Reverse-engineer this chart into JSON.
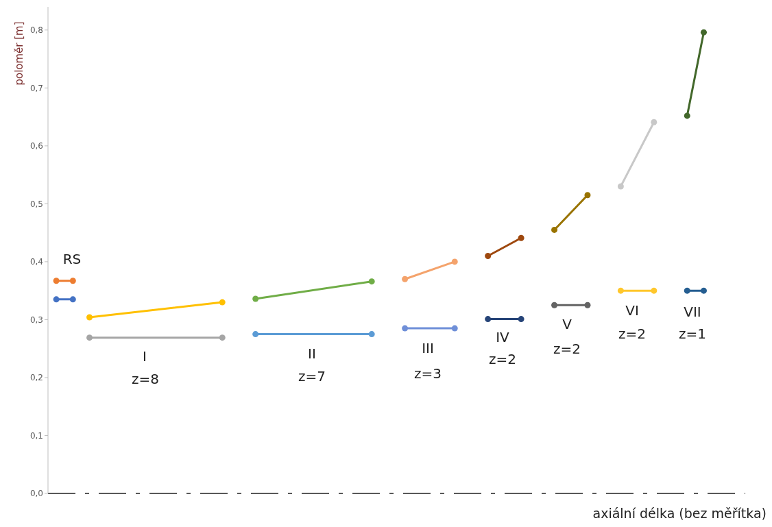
{
  "chart_data": {
    "type": "line",
    "xlabel": "axiální délka (bez měřítka)",
    "ylabel": "poloměr [m]",
    "categories": [
      null,
      null,
      null,
      null,
      null,
      null,
      null,
      null,
      null,
      null,
      null,
      null,
      null,
      null,
      null,
      null,
      null,
      null,
      null,
      null,
      null,
      null,
      null,
      null,
      null,
      null,
      null,
      null,
      null,
      null,
      null,
      null,
      null,
      null,
      null,
      null,
      null,
      null,
      null,
      null,
      null,
      null
    ],
    "series": [
      {
        "color": "#ed7d31",
        "values": [
          0.367,
          0.367,
          null,
          null,
          null,
          null,
          null,
          null,
          null,
          null,
          null,
          null,
          null,
          null,
          null,
          null,
          null,
          null,
          null,
          null,
          null,
          null,
          null,
          null,
          null,
          null,
          null,
          null,
          null,
          null,
          null,
          null,
          null,
          null,
          null,
          null,
          null,
          null,
          null,
          null,
          null,
          null
        ]
      },
      {
        "color": "#4472c4",
        "values": [
          0.335,
          0.335,
          null,
          null,
          null,
          null,
          null,
          null,
          null,
          null,
          null,
          null,
          null,
          null,
          null,
          null,
          null,
          null,
          null,
          null,
          null,
          null,
          null,
          null,
          null,
          null,
          null,
          null,
          null,
          null,
          null,
          null,
          null,
          null,
          null,
          null,
          null,
          null,
          null,
          null,
          null,
          null
        ]
      },
      {
        "color": "#ffc000",
        "values": [
          null,
          null,
          0.304,
          null,
          null,
          null,
          null,
          null,
          null,
          null,
          0.33,
          null,
          null,
          null,
          null,
          null,
          null,
          null,
          null,
          null,
          null,
          null,
          null,
          null,
          null,
          null,
          null,
          null,
          null,
          null,
          null,
          null,
          null,
          null,
          null,
          null,
          null,
          null,
          null,
          null,
          null,
          null
        ]
      },
      {
        "color": "#a5a5a5",
        "values": [
          null,
          null,
          0.269,
          null,
          null,
          null,
          null,
          null,
          null,
          null,
          0.269,
          null,
          null,
          null,
          null,
          null,
          null,
          null,
          null,
          null,
          null,
          null,
          null,
          null,
          null,
          null,
          null,
          null,
          null,
          null,
          null,
          null,
          null,
          null,
          null,
          null,
          null,
          null,
          null,
          null,
          null,
          null
        ]
      },
      {
        "color": "#70ad47",
        "values": [
          null,
          null,
          null,
          null,
          null,
          null,
          null,
          null,
          null,
          null,
          null,
          null,
          0.336,
          null,
          null,
          null,
          null,
          null,
          null,
          0.366,
          null,
          null,
          null,
          null,
          null,
          null,
          null,
          null,
          null,
          null,
          null,
          null,
          null,
          null,
          null,
          null,
          null,
          null,
          null,
          null,
          null,
          null
        ]
      },
      {
        "color": "#5b9bd5",
        "values": [
          null,
          null,
          null,
          null,
          null,
          null,
          null,
          null,
          null,
          null,
          null,
          null,
          0.275,
          null,
          null,
          null,
          null,
          null,
          null,
          0.275,
          null,
          null,
          null,
          null,
          null,
          null,
          null,
          null,
          null,
          null,
          null,
          null,
          null,
          null,
          null,
          null,
          null,
          null,
          null,
          null,
          null,
          null
        ]
      },
      {
        "color": "#f4a36c",
        "values": [
          null,
          null,
          null,
          null,
          null,
          null,
          null,
          null,
          null,
          null,
          null,
          null,
          null,
          null,
          null,
          null,
          null,
          null,
          null,
          null,
          null,
          0.37,
          null,
          null,
          0.4,
          null,
          null,
          null,
          null,
          null,
          null,
          null,
          null,
          null,
          null,
          null,
          null,
          null,
          null,
          null,
          null,
          null
        ]
      },
      {
        "color": "#6f8fd8",
        "values": [
          null,
          null,
          null,
          null,
          null,
          null,
          null,
          null,
          null,
          null,
          null,
          null,
          null,
          null,
          null,
          null,
          null,
          null,
          null,
          null,
          null,
          0.285,
          null,
          null,
          0.285,
          null,
          null,
          null,
          null,
          null,
          null,
          null,
          null,
          null,
          null,
          null,
          null,
          null,
          null,
          null,
          null,
          null
        ]
      },
      {
        "color": "#9e480e",
        "values": [
          null,
          null,
          null,
          null,
          null,
          null,
          null,
          null,
          null,
          null,
          null,
          null,
          null,
          null,
          null,
          null,
          null,
          null,
          null,
          null,
          null,
          null,
          null,
          null,
          null,
          null,
          0.41,
          null,
          0.441,
          null,
          null,
          null,
          null,
          null,
          null,
          null,
          null,
          null,
          null,
          null,
          null,
          null
        ]
      },
      {
        "color": "#264478",
        "values": [
          null,
          null,
          null,
          null,
          null,
          null,
          null,
          null,
          null,
          null,
          null,
          null,
          null,
          null,
          null,
          null,
          null,
          null,
          null,
          null,
          null,
          null,
          null,
          null,
          null,
          null,
          0.301,
          null,
          0.301,
          null,
          null,
          null,
          null,
          null,
          null,
          null,
          null,
          null,
          null,
          null,
          null,
          null
        ]
      },
      {
        "color": "#997300",
        "values": [
          null,
          null,
          null,
          null,
          null,
          null,
          null,
          null,
          null,
          null,
          null,
          null,
          null,
          null,
          null,
          null,
          null,
          null,
          null,
          null,
          null,
          null,
          null,
          null,
          null,
          null,
          null,
          null,
          null,
          null,
          0.455,
          null,
          0.515,
          null,
          null,
          null,
          null,
          null,
          null,
          null,
          null,
          null
        ]
      },
      {
        "color": "#636363",
        "values": [
          null,
          null,
          null,
          null,
          null,
          null,
          null,
          null,
          null,
          null,
          null,
          null,
          null,
          null,
          null,
          null,
          null,
          null,
          null,
          null,
          null,
          null,
          null,
          null,
          null,
          null,
          null,
          null,
          null,
          null,
          0.325,
          null,
          0.325,
          null,
          null,
          null,
          null,
          null,
          null,
          null,
          null,
          null
        ]
      },
      {
        "color": "#c8c8c8",
        "values": [
          null,
          null,
          null,
          null,
          null,
          null,
          null,
          null,
          null,
          null,
          null,
          null,
          null,
          null,
          null,
          null,
          null,
          null,
          null,
          null,
          null,
          null,
          null,
          null,
          null,
          null,
          null,
          null,
          null,
          null,
          null,
          null,
          null,
          null,
          0.53,
          null,
          0.641,
          null,
          null,
          null,
          null,
          null
        ]
      },
      {
        "color": "#ffc72c",
        "values": [
          null,
          null,
          null,
          null,
          null,
          null,
          null,
          null,
          null,
          null,
          null,
          null,
          null,
          null,
          null,
          null,
          null,
          null,
          null,
          null,
          null,
          null,
          null,
          null,
          null,
          null,
          null,
          null,
          null,
          null,
          null,
          null,
          null,
          null,
          0.35,
          null,
          0.35,
          null,
          null,
          null,
          null,
          null
        ]
      },
      {
        "color": "#43682b",
        "values": [
          null,
          null,
          null,
          null,
          null,
          null,
          null,
          null,
          null,
          null,
          null,
          null,
          null,
          null,
          null,
          null,
          null,
          null,
          null,
          null,
          null,
          null,
          null,
          null,
          null,
          null,
          null,
          null,
          null,
          null,
          null,
          null,
          null,
          null,
          null,
          null,
          null,
          null,
          0.652,
          0.796,
          null,
          null
        ]
      },
      {
        "color": "#255e91",
        "values": [
          null,
          null,
          null,
          null,
          null,
          null,
          null,
          null,
          null,
          null,
          null,
          null,
          null,
          null,
          null,
          null,
          null,
          null,
          null,
          null,
          null,
          null,
          null,
          null,
          null,
          null,
          null,
          null,
          null,
          null,
          null,
          null,
          null,
          null,
          null,
          null,
          null,
          null,
          0.35,
          0.35,
          null,
          null
        ]
      }
    ],
    "annotations": [
      "RS",
      "I",
      "z=8",
      "II",
      "z=7",
      "III",
      "z=3",
      "IV",
      "z=2",
      "V",
      "z=2",
      "VI",
      "z=2",
      "VII",
      "z=1"
    ],
    "ylim": [
      0,
      0.84
    ],
    "yticks": [
      {
        "value": 0,
        "label": "0,0"
      },
      {
        "value": 0.1,
        "label": "0,1"
      },
      {
        "value": 0.2,
        "label": "0,2"
      },
      {
        "value": 0.3,
        "label": "0,3"
      },
      {
        "value": 0.4,
        "label": "0,4"
      },
      {
        "value": 0.5,
        "label": "0,5"
      },
      {
        "value": 0.6,
        "label": "0,6"
      },
      {
        "value": 0.7,
        "label": "0,7"
      },
      {
        "value": 0.8,
        "label": "0,8"
      }
    ],
    "tick_labels": "y",
    "marker": "circle",
    "line_style": "solid",
    "grid": false
  }
}
